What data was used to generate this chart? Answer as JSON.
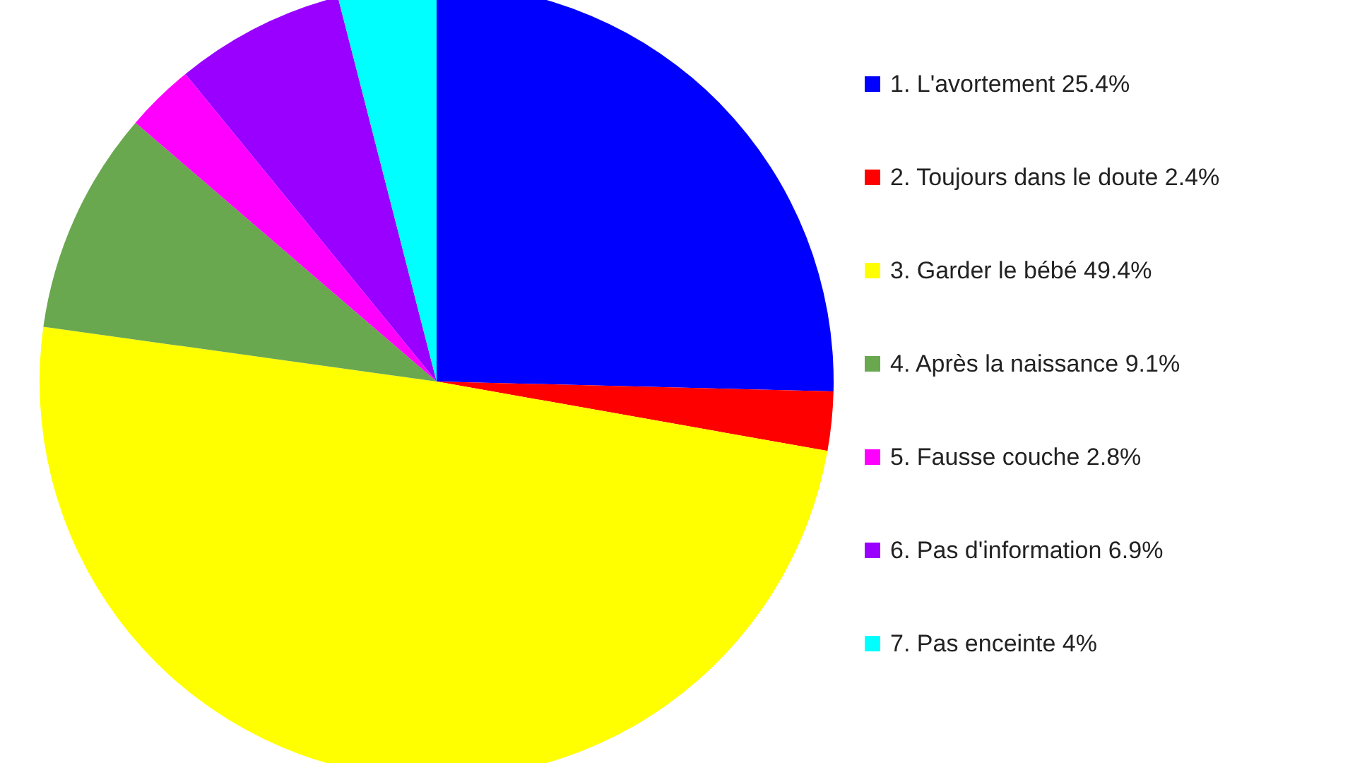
{
  "chart_data": {
    "type": "pie",
    "categories": [
      "1. L'avortement",
      "2. Toujours dans le doute",
      "3. Garder le bébé",
      "4. Après la naissance",
      "5. Fausse couche",
      "6. Pas d'information",
      "7. Pas enceinte"
    ],
    "values": [
      25.4,
      2.4,
      49.4,
      9.1,
      2.8,
      6.9,
      4
    ],
    "value_labels": [
      "25.4%",
      "2.4%",
      "49.4%",
      "9.1%",
      "2.8%",
      "6.9%",
      "4%"
    ],
    "colors": [
      "#0000ff",
      "#ff0000",
      "#ffff00",
      "#6aa84f",
      "#ff00ff",
      "#9900ff",
      "#00ffff"
    ],
    "legend": "right"
  }
}
